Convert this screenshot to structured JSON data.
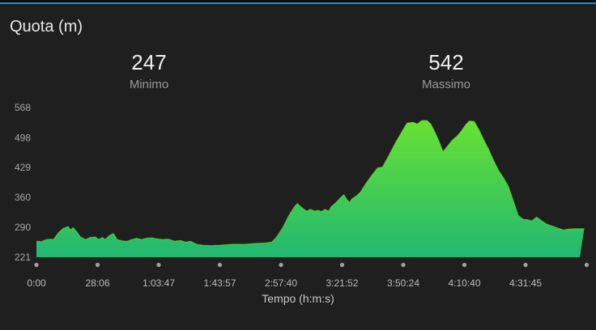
{
  "header": {
    "title": "Quota (m)"
  },
  "stats": [
    {
      "value": "247",
      "label": "Minimo"
    },
    {
      "value": "542",
      "label": "Massimo"
    }
  ],
  "colors": {
    "fill_top": "#6fe52c",
    "fill_bottom": "#21b872",
    "background": "#1f1f1f",
    "accent": "#1e8fd6"
  },
  "chart_data": {
    "type": "area",
    "xlabel": "Tempo (h:m:s)",
    "ylabel": "",
    "y_ticks": [
      221,
      290,
      360,
      429,
      498,
      568
    ],
    "ylim": [
      221,
      568
    ],
    "x_tick_labels": [
      "0:00",
      "28:06",
      "1:03:47",
      "1:43:57",
      "2:57:40",
      "3:21:52",
      "3:50:24",
      "4:10:40",
      "4:31:45"
    ],
    "x_tick_index": [
      0,
      1,
      2,
      3,
      4,
      5,
      6,
      7,
      8
    ],
    "x_max_index": 9,
    "series": [
      {
        "points": [
          [
            0.0,
            258
          ],
          [
            0.08,
            257
          ],
          [
            0.16,
            262
          ],
          [
            0.24,
            263
          ],
          [
            0.28,
            262
          ],
          [
            0.36,
            278
          ],
          [
            0.44,
            288
          ],
          [
            0.52,
            292
          ],
          [
            0.56,
            284
          ],
          [
            0.6,
            290
          ],
          [
            0.66,
            280
          ],
          [
            0.72,
            268
          ],
          [
            0.8,
            262
          ],
          [
            0.88,
            267
          ],
          [
            0.96,
            268
          ],
          [
            1.02,
            262
          ],
          [
            1.08,
            267
          ],
          [
            1.12,
            262
          ],
          [
            1.2,
            272
          ],
          [
            1.26,
            276
          ],
          [
            1.32,
            262
          ],
          [
            1.4,
            259
          ],
          [
            1.48,
            258
          ],
          [
            1.56,
            262
          ],
          [
            1.64,
            265
          ],
          [
            1.72,
            262
          ],
          [
            1.8,
            265
          ],
          [
            1.88,
            266
          ],
          [
            1.96,
            264
          ],
          [
            2.06,
            262
          ],
          [
            2.16,
            263
          ],
          [
            2.26,
            258
          ],
          [
            2.36,
            260
          ],
          [
            2.44,
            256
          ],
          [
            2.52,
            258
          ],
          [
            2.62,
            251
          ],
          [
            2.72,
            249
          ],
          [
            2.86,
            248
          ],
          [
            3.0,
            249
          ],
          [
            3.2,
            251
          ],
          [
            3.4,
            251
          ],
          [
            3.6,
            253
          ],
          [
            3.75,
            254
          ],
          [
            3.85,
            256
          ],
          [
            3.93,
            268
          ],
          [
            4.03,
            290
          ],
          [
            4.13,
            318
          ],
          [
            4.22,
            338
          ],
          [
            4.27,
            346
          ],
          [
            4.3,
            341
          ],
          [
            4.36,
            334
          ],
          [
            4.42,
            328
          ],
          [
            4.48,
            332
          ],
          [
            4.55,
            328
          ],
          [
            4.6,
            330
          ],
          [
            4.66,
            327
          ],
          [
            4.72,
            332
          ],
          [
            4.78,
            328
          ],
          [
            4.82,
            338
          ],
          [
            4.9,
            348
          ],
          [
            4.98,
            360
          ],
          [
            5.03,
            366
          ],
          [
            5.07,
            356
          ],
          [
            5.12,
            348
          ],
          [
            5.16,
            356
          ],
          [
            5.24,
            364
          ],
          [
            5.3,
            372
          ],
          [
            5.38,
            390
          ],
          [
            5.48,
            410
          ],
          [
            5.58,
            428
          ],
          [
            5.66,
            430
          ],
          [
            5.76,
            456
          ],
          [
            5.86,
            483
          ],
          [
            5.96,
            508
          ],
          [
            6.06,
            532
          ],
          [
            6.16,
            534
          ],
          [
            6.23,
            530
          ],
          [
            6.3,
            538
          ],
          [
            6.39,
            538
          ],
          [
            6.45,
            530
          ],
          [
            6.5,
            516
          ],
          [
            6.57,
            495
          ],
          [
            6.65,
            466
          ],
          [
            6.72,
            478
          ],
          [
            6.8,
            492
          ],
          [
            6.88,
            502
          ],
          [
            6.94,
            512
          ],
          [
            7.02,
            528
          ],
          [
            7.08,
            537
          ],
          [
            7.16,
            536
          ],
          [
            7.24,
            516
          ],
          [
            7.32,
            492
          ],
          [
            7.4,
            470
          ],
          [
            7.48,
            445
          ],
          [
            7.56,
            422
          ],
          [
            7.64,
            405
          ],
          [
            7.72,
            385
          ],
          [
            7.8,
            352
          ],
          [
            7.88,
            318
          ],
          [
            7.96,
            309
          ],
          [
            8.04,
            308
          ],
          [
            8.1,
            305
          ],
          [
            8.18,
            314
          ],
          [
            8.26,
            306
          ],
          [
            8.34,
            298
          ],
          [
            8.44,
            293
          ],
          [
            8.54,
            288
          ],
          [
            8.62,
            284
          ],
          [
            8.7,
            286
          ],
          [
            8.8,
            287
          ],
          [
            8.96,
            287
          ]
        ]
      }
    ]
  }
}
